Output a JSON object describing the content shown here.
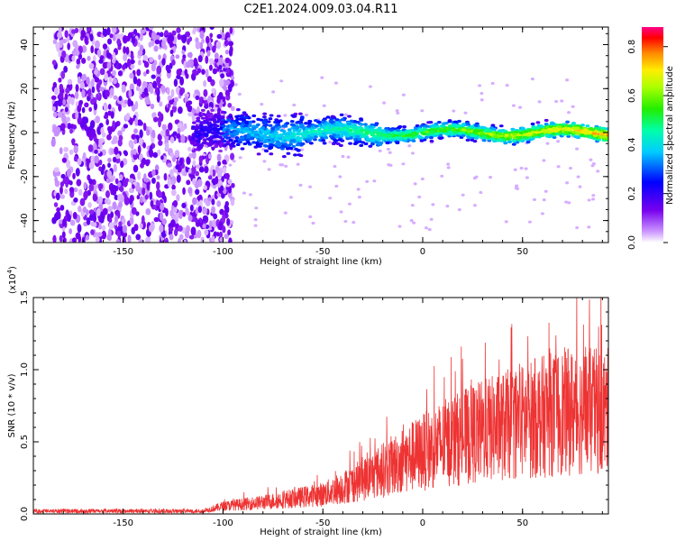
{
  "title": "C2E1.2024.009.03.04.R11",
  "chart_data": [
    {
      "type": "heatmap",
      "title": "C2E1.2024.009.03.04.R11",
      "xlabel": "Height of straight line (km)",
      "ylabel": "Frequency (Hz)",
      "xlim": [
        -195,
        93
      ],
      "ylim": [
        -50,
        48
      ],
      "xticks": [
        -150,
        -100,
        -50,
        0,
        50
      ],
      "yticks": [
        -40,
        -20,
        0,
        20,
        40
      ],
      "colorbar": {
        "label": "Normalized spectral amplitude",
        "range": [
          0.0,
          0.88
        ],
        "ticks": [
          "0.0",
          "0.2",
          "0.4",
          "0.6",
          "0.8"
        ],
        "colormap": "rainbow"
      },
      "noise_region": {
        "x_range": [
          -195,
          -105
        ],
        "description_value": "broadband low amplitude"
      },
      "signal_band": {
        "x_range": [
          -115,
          93
        ],
        "center_frequency": 0,
        "half_width": 6,
        "peak_amplitude": 0.85
      }
    },
    {
      "type": "line",
      "xlabel": "Height of straight line (km)",
      "ylabel": "SNR (10 * v/v)",
      "ylabel_multiplier": "(x10",
      "ylabel_multiplier_exp": "4",
      "ylabel_multiplier_close": ")",
      "xlim": [
        -195,
        93
      ],
      "ylim": [
        0,
        1.5
      ],
      "xticks": [
        -150,
        -100,
        -50,
        0,
        50
      ],
      "yticks": [
        "0.0",
        "0.5",
        "1.0",
        "1.5"
      ],
      "color": "#ee3333",
      "envelope": [
        {
          "x": -195,
          "y": 0.02
        },
        {
          "x": -110,
          "y": 0.03
        },
        {
          "x": -100,
          "y": 0.08
        },
        {
          "x": -80,
          "y": 0.12
        },
        {
          "x": -50,
          "y": 0.2
        },
        {
          "x": -30,
          "y": 0.35
        },
        {
          "x": -10,
          "y": 0.55
        },
        {
          "x": 10,
          "y": 0.72
        },
        {
          "x": 30,
          "y": 0.85
        },
        {
          "x": 50,
          "y": 0.95
        },
        {
          "x": 70,
          "y": 1.05
        },
        {
          "x": 93,
          "y": 1.05
        }
      ]
    }
  ]
}
